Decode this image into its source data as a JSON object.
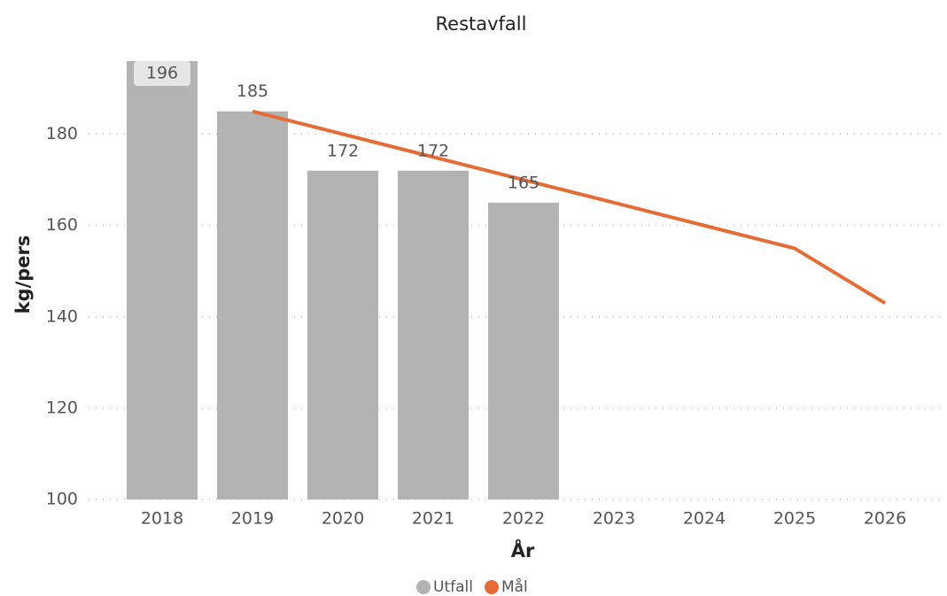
{
  "chart_data": {
    "type": "combo",
    "title": "Restavfall",
    "x_label": "År",
    "y_label": "kg/pers",
    "categories": [
      "2018",
      "2019",
      "2020",
      "2021",
      "2022",
      "2023",
      "2024",
      "2025",
      "2026"
    ],
    "series": [
      {
        "name": "Utfall",
        "type": "bar",
        "color": "#b3b3b3",
        "values": [
          196,
          185,
          172,
          172,
          165,
          null,
          null,
          null,
          null
        ]
      },
      {
        "name": "Mål",
        "type": "line",
        "color": "#e66c37",
        "values": [
          null,
          185,
          180,
          175,
          170,
          165,
          160,
          155,
          143
        ]
      }
    ],
    "ylim": [
      100,
      196
    ],
    "yticks": [
      100,
      120,
      140,
      160,
      180
    ],
    "grid": true,
    "legend": "bottom"
  }
}
